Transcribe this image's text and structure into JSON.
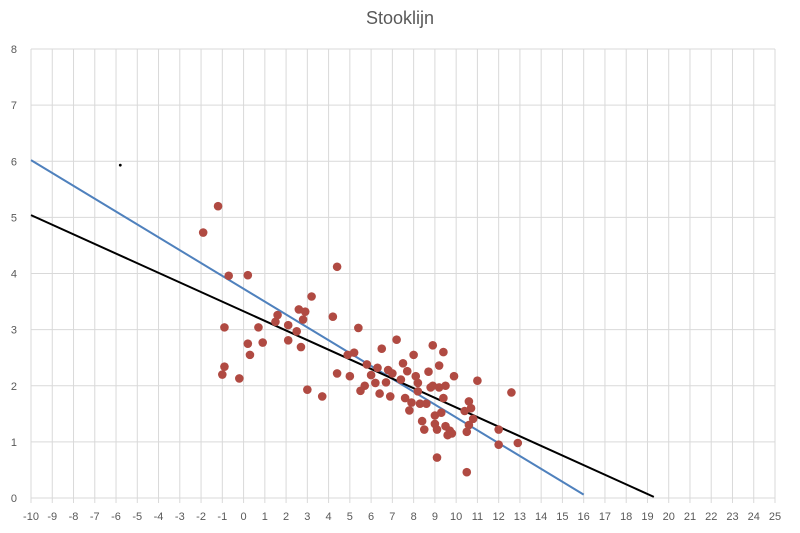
{
  "chart_data": {
    "type": "scatter",
    "title": "Stooklijn",
    "xlabel": "",
    "ylabel": "",
    "xlim": [
      -10,
      25
    ],
    "ylim": [
      0,
      8
    ],
    "x_ticks": [
      -10,
      -9,
      -8,
      -7,
      -6,
      -5,
      -4,
      -3,
      -2,
      -1,
      0,
      1,
      2,
      3,
      4,
      5,
      6,
      7,
      8,
      9,
      10,
      11,
      12,
      13,
      14,
      15,
      16,
      17,
      18,
      19,
      20,
      21,
      22,
      23,
      24,
      25
    ],
    "y_ticks": [
      0,
      1,
      2,
      3,
      4,
      5,
      6,
      7,
      8
    ],
    "grid": true,
    "legend": "none",
    "colors": {
      "points": "#b04a42",
      "blue_line": "#4f81bd",
      "black_line": "#000000",
      "grid": "#d9d9d9",
      "axis_text": "#595959"
    },
    "series": [
      {
        "name": "data points",
        "kind": "scatter",
        "points": [
          [
            -1.9,
            4.73
          ],
          [
            -1.2,
            5.2
          ],
          [
            -0.7,
            3.96
          ],
          [
            0.2,
            3.97
          ],
          [
            -0.9,
            3.04
          ],
          [
            -0.9,
            2.34
          ],
          [
            -1.0,
            2.2
          ],
          [
            -0.2,
            2.13
          ],
          [
            0.2,
            2.75
          ],
          [
            0.3,
            2.55
          ],
          [
            0.7,
            3.04
          ],
          [
            0.9,
            2.77
          ],
          [
            1.5,
            3.14
          ],
          [
            1.6,
            3.26
          ],
          [
            2.1,
            3.08
          ],
          [
            2.1,
            2.81
          ],
          [
            2.5,
            2.97
          ],
          [
            2.6,
            3.36
          ],
          [
            2.7,
            2.69
          ],
          [
            2.8,
            3.18
          ],
          [
            2.9,
            3.32
          ],
          [
            3.2,
            3.59
          ],
          [
            4.2,
            3.23
          ],
          [
            4.4,
            4.12
          ],
          [
            4.4,
            2.22
          ],
          [
            3.0,
            1.93
          ],
          [
            3.7,
            1.81
          ],
          [
            4.9,
            2.55
          ],
          [
            5.0,
            2.17
          ],
          [
            5.2,
            2.59
          ],
          [
            5.4,
            3.03
          ],
          [
            5.5,
            1.91
          ],
          [
            5.7,
            2.0
          ],
          [
            5.8,
            2.38
          ],
          [
            6.0,
            2.19
          ],
          [
            6.2,
            2.05
          ],
          [
            6.3,
            2.32
          ],
          [
            6.4,
            1.86
          ],
          [
            6.5,
            2.66
          ],
          [
            6.7,
            2.06
          ],
          [
            6.8,
            2.28
          ],
          [
            6.9,
            1.81
          ],
          [
            7.0,
            2.22
          ],
          [
            7.2,
            2.82
          ],
          [
            7.4,
            2.11
          ],
          [
            7.5,
            2.4
          ],
          [
            7.6,
            1.78
          ],
          [
            7.7,
            2.26
          ],
          [
            7.8,
            1.56
          ],
          [
            7.9,
            1.7
          ],
          [
            8.0,
            2.55
          ],
          [
            8.1,
            2.17
          ],
          [
            8.2,
            2.05
          ],
          [
            8.2,
            1.9
          ],
          [
            8.3,
            1.68
          ],
          [
            8.4,
            1.37
          ],
          [
            8.5,
            1.22
          ],
          [
            8.6,
            1.68
          ],
          [
            8.7,
            2.25
          ],
          [
            8.8,
            1.97
          ],
          [
            8.9,
            2.72
          ],
          [
            8.9,
            2.0
          ],
          [
            9.0,
            1.47
          ],
          [
            9.0,
            1.32
          ],
          [
            9.1,
            1.22
          ],
          [
            9.2,
            2.36
          ],
          [
            9.2,
            1.97
          ],
          [
            9.3,
            1.52
          ],
          [
            9.4,
            2.6
          ],
          [
            9.4,
            1.78
          ],
          [
            9.5,
            2.0
          ],
          [
            9.5,
            1.28
          ],
          [
            9.6,
            1.12
          ],
          [
            9.7,
            1.2
          ],
          [
            9.8,
            1.15
          ],
          [
            9.9,
            2.17
          ],
          [
            9.1,
            0.72
          ],
          [
            10.4,
            1.55
          ],
          [
            10.5,
            1.18
          ],
          [
            10.6,
            1.72
          ],
          [
            10.7,
            1.6
          ],
          [
            10.8,
            1.41
          ],
          [
            10.6,
            1.3
          ],
          [
            10.5,
            0.46
          ],
          [
            11.0,
            2.09
          ],
          [
            12.0,
            1.22
          ],
          [
            12.0,
            0.95
          ],
          [
            12.6,
            1.88
          ],
          [
            12.9,
            0.98
          ]
        ]
      },
      {
        "name": "blue line",
        "kind": "line",
        "points": [
          [
            -10,
            6.02
          ],
          [
            16.0,
            0.06
          ]
        ]
      },
      {
        "name": "black line",
        "kind": "line",
        "points": [
          [
            -10,
            5.04
          ],
          [
            19.3,
            0.02
          ]
        ]
      },
      {
        "name": "marker",
        "kind": "dot",
        "points": [
          [
            -5.8,
            5.93
          ]
        ]
      }
    ]
  }
}
